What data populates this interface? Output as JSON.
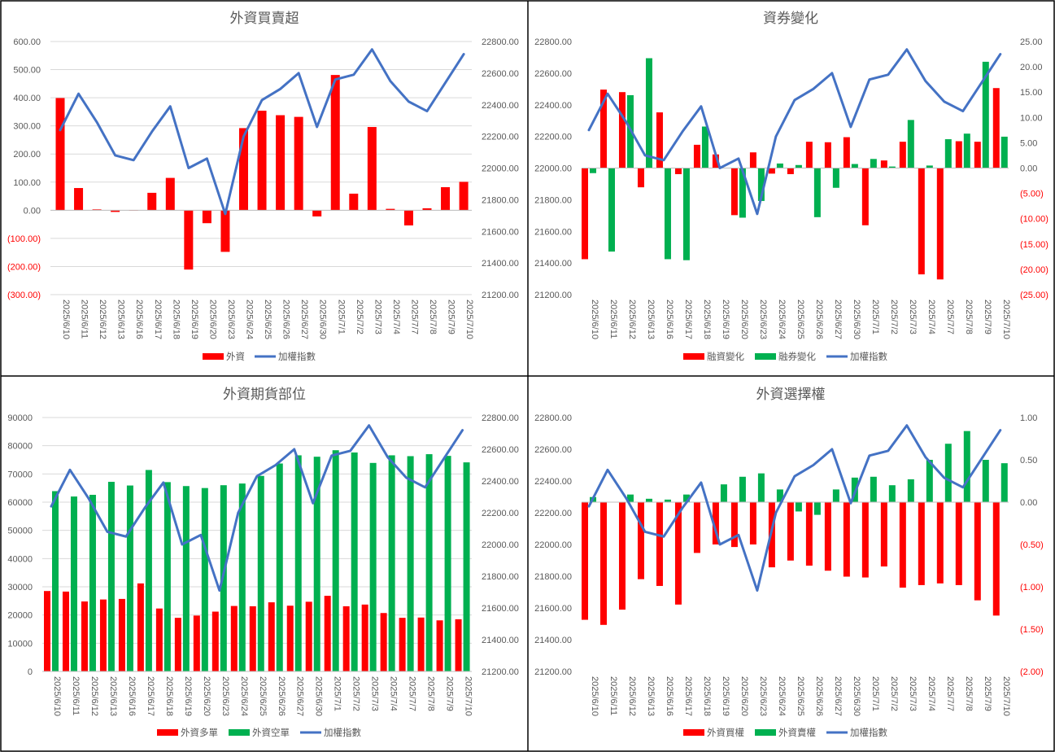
{
  "chart_data": [
    {
      "type": "bar",
      "title": "外資買賣超",
      "categories": [
        "2025/6/10",
        "2025/6/11",
        "2025/6/12",
        "2025/6/13",
        "2025/6/16",
        "2025/6/17",
        "2025/6/18",
        "2025/6/19",
        "2025/6/20",
        "2025/6/23",
        "2025/6/24",
        "2025/6/25",
        "2025/6/26",
        "2025/6/27",
        "2025/6/30",
        "2025/7/1",
        "2025/7/2",
        "2025/7/3",
        "2025/7/4",
        "2025/7/7",
        "2025/7/8",
        "2025/7/9",
        "2025/7/10"
      ],
      "bar_mode": "group",
      "series": [
        {
          "name": "外資",
          "values": [
            399,
            79,
            3,
            -6,
            0,
            62,
            115,
            -211,
            -46,
            -148,
            292,
            354,
            338,
            332,
            -22,
            481,
            59,
            296,
            5,
            -54,
            7,
            82,
            101
          ],
          "color": "#ff0000",
          "axis": "left"
        }
      ],
      "line": {
        "name": "加權指數",
        "values": [
          22240,
          22470,
          22290,
          22080,
          22050,
          22230,
          22390,
          22000,
          22060,
          21710,
          22200,
          22430,
          22500,
          22600,
          22260,
          22560,
          22590,
          22750,
          22550,
          22420,
          22360,
          22540,
          22720
        ],
        "color": "#4472c4"
      },
      "left_axis": {
        "min": -300,
        "max": 600,
        "step": 100,
        "ticks": [
          "(300.00)",
          "(200.00)",
          "(100.00)",
          "0.00",
          "100.00",
          "200.00",
          "300.00",
          "400.00",
          "500.00",
          "600.00"
        ]
      },
      "right_axis": {
        "min": 21200,
        "max": 22800,
        "step": 200,
        "ticks": [
          "21200.00",
          "21400.00",
          "21600.00",
          "21800.00",
          "22000.00",
          "22200.00",
          "22400.00",
          "22600.00",
          "22800.00"
        ]
      },
      "negative_tick_color": "#ff0000",
      "grid": true,
      "legend_position": "bottom"
    },
    {
      "type": "bar",
      "title": "資券變化",
      "categories": [
        "2025/6/10",
        "2025/6/11",
        "2025/6/12",
        "2025/6/13",
        "2025/6/16",
        "2025/6/17",
        "2025/6/18",
        "2025/6/19",
        "2025/6/20",
        "2025/6/23",
        "2025/6/24",
        "2025/6/25",
        "2025/6/26",
        "2025/6/27",
        "2025/6/30",
        "2025/7/1",
        "2025/7/2",
        "2025/7/3",
        "2025/7/4",
        "2025/7/7",
        "2025/7/8",
        "2025/7/9",
        "2025/7/10"
      ],
      "bar_mode": "group",
      "series": [
        {
          "name": "融資變化",
          "values": [
            -18,
            15.5,
            15,
            -3.8,
            11,
            -1.2,
            4.6,
            2.7,
            -9.3,
            3.1,
            -1.1,
            -1.2,
            5.2,
            5.1,
            6.1,
            -11.3,
            1.5,
            5.2,
            -21,
            -22,
            5.3,
            5.2,
            15.8
          ],
          "color": "#ff0000",
          "axis": "right"
        },
        {
          "name": "融券變化",
          "values": [
            -1,
            -16.5,
            14.4,
            21.7,
            -18,
            -18.2,
            8.2,
            0,
            -9.8,
            -6.5,
            0.9,
            0.6,
            -9.7,
            -3.9,
            0.8,
            1.8,
            0.3,
            9.5,
            0.5,
            5.7,
            6.8,
            21,
            6.2
          ],
          "color": "#00b050",
          "axis": "right"
        }
      ],
      "line": {
        "name": "加權指數",
        "values": [
          22240,
          22470,
          22290,
          22080,
          22050,
          22230,
          22390,
          22000,
          22060,
          21710,
          22200,
          22430,
          22500,
          22600,
          22260,
          22560,
          22590,
          22750,
          22550,
          22420,
          22360,
          22540,
          22720
        ],
        "color": "#4472c4"
      },
      "left_axis": {
        "min": 21200,
        "max": 22800,
        "step": 200,
        "ticks": [
          "21200.00",
          "21400.00",
          "21600.00",
          "21800.00",
          "22000.00",
          "22200.00",
          "22400.00",
          "22600.00",
          "22800.00"
        ]
      },
      "right_axis": {
        "min": -25,
        "max": 25,
        "step": 5,
        "ticks": [
          "(25.00)",
          "(20.00)",
          "(15.00)",
          "(10.00)",
          "(5.00)",
          "0.00",
          "5.00",
          "10.00",
          "15.00",
          "20.00",
          "25.00"
        ]
      },
      "negative_tick_color": "#ff0000",
      "grid": false,
      "legend_position": "bottom"
    },
    {
      "type": "bar",
      "title": "外資期貨部位",
      "categories": [
        "2025/6/10",
        "2025/6/11",
        "2025/6/12",
        "2025/6/13",
        "2025/6/16",
        "2025/6/17",
        "2025/6/18",
        "2025/6/19",
        "2025/6/20",
        "2025/6/23",
        "2025/6/24",
        "2025/6/25",
        "2025/6/26",
        "2025/6/27",
        "2025/6/30",
        "2025/7/1",
        "2025/7/2",
        "2025/7/3",
        "2025/7/4",
        "2025/7/7",
        "2025/7/8",
        "2025/7/9",
        "2025/7/10"
      ],
      "bar_mode": "group",
      "series": [
        {
          "name": "外資多單",
          "values": [
            28500,
            28300,
            24800,
            25500,
            25700,
            31200,
            22300,
            19000,
            19800,
            21200,
            23200,
            23100,
            24500,
            23300,
            24700,
            26800,
            23100,
            23700,
            20700,
            19000,
            19100,
            18100,
            18500
          ],
          "color": "#ff0000",
          "axis": "left"
        },
        {
          "name": "外資空單",
          "values": [
            63900,
            62000,
            62600,
            67200,
            65900,
            71400,
            67100,
            65700,
            65000,
            66000,
            66600,
            69300,
            73700,
            76600,
            76100,
            78400,
            77600,
            73900,
            76600,
            76300,
            77000,
            76400,
            74100
          ],
          "color": "#00b050",
          "axis": "left"
        }
      ],
      "line": {
        "name": "加權指數",
        "values": [
          22240,
          22470,
          22290,
          22080,
          22050,
          22230,
          22390,
          22000,
          22060,
          21710,
          22200,
          22430,
          22500,
          22600,
          22260,
          22560,
          22590,
          22750,
          22550,
          22420,
          22360,
          22540,
          22720
        ],
        "color": "#4472c4"
      },
      "left_axis": {
        "min": 0,
        "max": 90000,
        "step": 10000,
        "ticks": [
          "0",
          "10000",
          "20000",
          "30000",
          "40000",
          "50000",
          "60000",
          "70000",
          "80000",
          "90000"
        ]
      },
      "right_axis": {
        "min": 21200,
        "max": 22800,
        "step": 200,
        "ticks": [
          "21200.00",
          "21400.00",
          "21600.00",
          "21800.00",
          "22000.00",
          "22200.00",
          "22400.00",
          "22600.00",
          "22800.00"
        ]
      },
      "negative_tick_color": "#595959",
      "grid": true,
      "legend_position": "bottom"
    },
    {
      "type": "bar",
      "title": "外資選擇權",
      "categories": [
        "2025/6/10",
        "2025/6/11",
        "2025/6/12",
        "2025/6/13",
        "2025/6/16",
        "2025/6/17",
        "2025/6/18",
        "2025/6/19",
        "2025/6/20",
        "2025/6/23",
        "2025/6/24",
        "2025/6/25",
        "2025/6/26",
        "2025/6/27",
        "2025/6/30",
        "2025/7/1",
        "2025/7/2",
        "2025/7/3",
        "2025/7/4",
        "2025/7/7",
        "2025/7/8",
        "2025/7/9",
        "2025/7/10"
      ],
      "bar_mode": "group",
      "series": [
        {
          "name": "外資買權",
          "values": [
            -1.39,
            -1.45,
            -1.27,
            -0.91,
            -0.99,
            -1.21,
            -0.6,
            -0.5,
            -0.53,
            -0.5,
            -0.77,
            -0.69,
            -0.75,
            -0.81,
            -0.88,
            -0.89,
            -0.76,
            -1.01,
            -0.98,
            -0.96,
            -0.98,
            -1.16,
            -1.34
          ],
          "color": "#ff0000",
          "axis": "right"
        },
        {
          "name": "外資賣權",
          "values": [
            0.06,
            0,
            0.09,
            0.04,
            0.03,
            0.09,
            0,
            0.21,
            0.3,
            0.34,
            0.15,
            -0.11,
            -0.15,
            0.15,
            0.29,
            0.3,
            0.2,
            0.27,
            0.5,
            0.69,
            0.84,
            0.5,
            0.46
          ],
          "color": "#00b050",
          "axis": "right"
        }
      ],
      "line": {
        "name": "加權指數",
        "values": [
          22240,
          22470,
          22290,
          22080,
          22050,
          22230,
          22390,
          22000,
          22060,
          21710,
          22200,
          22430,
          22500,
          22600,
          22260,
          22560,
          22590,
          22750,
          22550,
          22420,
          22360,
          22540,
          22720
        ],
        "color": "#4472c4"
      },
      "left_axis": {
        "min": 21200,
        "max": 22800,
        "step": 200,
        "ticks": [
          "21200.00",
          "21400.00",
          "21600.00",
          "21800.00",
          "22000.00",
          "22200.00",
          "22400.00",
          "22600.00",
          "22800.00"
        ]
      },
      "right_axis": {
        "min": -2,
        "max": 1,
        "step": 0.5,
        "ticks": [
          "(2.00)",
          "(1.50)",
          "(1.00)",
          "(0.50)",
          "0.00",
          "0.50",
          "1.00"
        ]
      },
      "negative_tick_color": "#ff0000",
      "grid": false,
      "legend_position": "bottom"
    }
  ],
  "colors": {
    "border": "#000000",
    "text": "#595959",
    "grid": "#d9d9d9"
  }
}
